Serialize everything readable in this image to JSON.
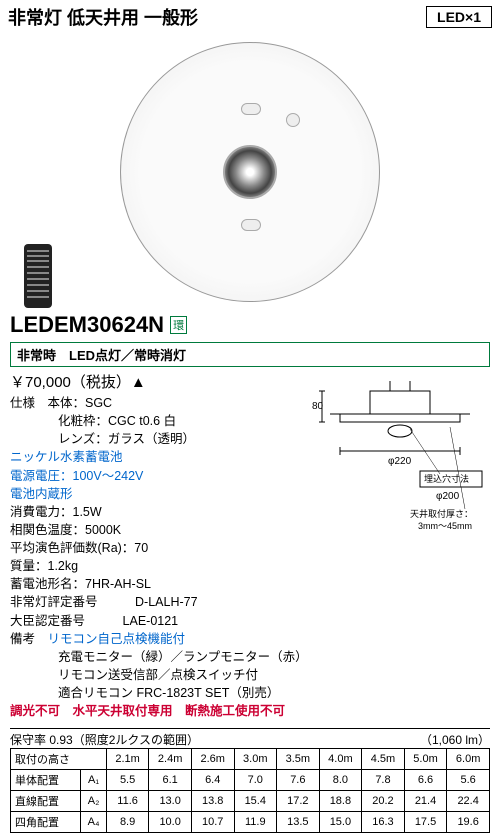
{
  "header": {
    "title": "非常灯 低天井用 一般形",
    "led_badge": "LED×1"
  },
  "model": {
    "number": "LEDEM30624N",
    "eco": "環"
  },
  "mode_bar": "非常時　LED点灯／常時消灯",
  "price": "￥70,000（税抜）▲",
  "specs": {
    "s1": "仕様　本体：SGC",
    "s2": "化粧枠：CGC t0.6 白",
    "s3": "レンズ：ガラス（透明）",
    "b1": "ニッケル水素蓄電池",
    "b2": "電源電圧：100V～242V",
    "b3": "電池内蔵形",
    "s4": "消費電力：1.5W",
    "s5": "相関色温度：5000K",
    "s6": "平均演色評価数(Ra)：70",
    "s7": "質量：1.2kg",
    "s8": "蓄電池形名：7HR-AH-SL",
    "s9a": "非常灯評定番号",
    "s9b": "D-LALH-77",
    "s10a": "大臣認定番号",
    "s10b": "LAE-0121",
    "s11": "備考",
    "b4": "リモコン自己点検機能付",
    "s12": "充電モニター（緑）／ランプモニター（赤）",
    "s13": "リモコン送受信部／点検スイッチ付",
    "s14": "適合リモコン FRC-1823T SET（別売）",
    "r1": "調光不可　水平天井取付専用　断熱施工使用不可"
  },
  "diagram": {
    "height": "80",
    "diameter": "φ220",
    "hole_label": "埋込穴寸法",
    "hole_dia": "φ200",
    "thick_label": "天井取付厚さ：",
    "thick_val": "3mm～45mm"
  },
  "table": {
    "left_label": "保守率 0.93（照度2ルクスの範囲）",
    "right_label": "（1,060 lm）",
    "heights_label": "取付の高さ",
    "heights": [
      "2.1m",
      "2.4m",
      "2.6m",
      "3.0m",
      "3.5m",
      "4.0m",
      "4.5m",
      "5.0m",
      "6.0m"
    ],
    "rows": [
      {
        "label": "単体配置",
        "code": "A₁",
        "vals": [
          "5.5",
          "6.1",
          "6.4",
          "7.0",
          "7.6",
          "8.0",
          "7.8",
          "6.6",
          "5.6"
        ]
      },
      {
        "label": "直線配置",
        "code": "A₂",
        "vals": [
          "11.6",
          "13.0",
          "13.8",
          "15.4",
          "17.2",
          "18.8",
          "20.2",
          "21.4",
          "22.4"
        ]
      },
      {
        "label": "四角配置",
        "code": "A₄",
        "vals": [
          "8.9",
          "10.0",
          "10.7",
          "11.9",
          "13.5",
          "15.0",
          "16.3",
          "17.5",
          "19.6"
        ]
      }
    ]
  }
}
